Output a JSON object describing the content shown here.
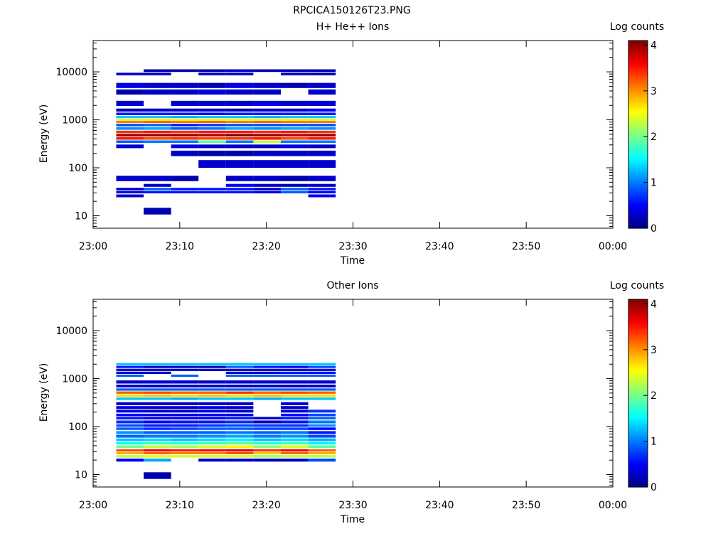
{
  "figure_title": "RPCICA150126T23.PNG",
  "colorbar_label": "Log counts",
  "colorscale": "jet",
  "chart_data": [
    {
      "type": "heatmap",
      "title": "H+ He++ Ions",
      "xlabel": "Time",
      "ylabel": "Energy (eV)",
      "y_scale": "log",
      "ylim": [
        5.5,
        45000
      ],
      "xlim": [
        "23:00",
        "00:00"
      ],
      "x_ticks": [
        "23:00",
        "23:10",
        "23:20",
        "23:30",
        "23:40",
        "23:50",
        "00:00"
      ],
      "y_ticks": [
        "10",
        "100",
        "1000",
        "10000"
      ],
      "colorbar_range": [
        0,
        4.1
      ],
      "colorbar_ticks": [
        "0",
        "1",
        "2",
        "3",
        "4"
      ],
      "time_bins": [
        [
          "23:02:40",
          "23:05:50"
        ],
        [
          "23:05:50",
          "23:09:00"
        ],
        [
          "23:09:00",
          "23:12:10"
        ],
        [
          "23:12:10",
          "23:15:20"
        ],
        [
          "23:15:20",
          "23:18:30"
        ],
        [
          "23:18:30",
          "23:21:40"
        ],
        [
          "23:21:40",
          "23:24:50"
        ],
        [
          "23:24:50",
          "23:28:00"
        ]
      ],
      "energy_bins": [
        {
          "e": 10600,
          "v": [
            0,
            0.2,
            0.2,
            0.2,
            0.3,
            0.2,
            0.2,
            0.2
          ]
        },
        {
          "e": 9000,
          "v": [
            0.3,
            0.3,
            0,
            0.3,
            0.3,
            0,
            0.3,
            0.2
          ]
        },
        {
          "e": 5200,
          "v": [
            0.4,
            0.3,
            0.3,
            0.2,
            0.4,
            0.3,
            0.2,
            0.3
          ]
        },
        {
          "e": 3800,
          "v": [
            0.2,
            0.3,
            0.3,
            0.4,
            0.3,
            0.3,
            0,
            0.3
          ]
        },
        {
          "e": 2200,
          "v": [
            0.3,
            0,
            0.3,
            0.3,
            0.3,
            0.4,
            0.3,
            0.3
          ]
        },
        {
          "e": 1600,
          "v": [
            0.2,
            0.3,
            0.3,
            0.3,
            0.2,
            0.3,
            0.3,
            0.5
          ]
        },
        {
          "e": 1330,
          "v": [
            0.6,
            0.6,
            0.6,
            0.5,
            0.6,
            0.6,
            0.6,
            0.6
          ]
        },
        {
          "e": 1140,
          "v": [
            1.3,
            1.3,
            1.2,
            1.3,
            1.3,
            1.2,
            1.3,
            1.3
          ]
        },
        {
          "e": 1000,
          "v": [
            2.4,
            2.6,
            2.5,
            2.5,
            2.5,
            2.4,
            2.6,
            2.4
          ]
        },
        {
          "e": 900,
          "v": [
            3.1,
            3.2,
            3.1,
            3.2,
            3.1,
            3.2,
            3.1,
            3.1
          ]
        },
        {
          "e": 780,
          "v": [
            0.8,
            0.9,
            0.6,
            0.7,
            0.8,
            0.8,
            0.8,
            0.8
          ]
        },
        {
          "e": 660,
          "v": [
            1.1,
            1.2,
            0.9,
            1.0,
            1.2,
            1.1,
            1.2,
            1.1
          ]
        },
        {
          "e": 560,
          "v": [
            3.4,
            3.5,
            3.4,
            3.5,
            3.5,
            3.4,
            3.5,
            3.4
          ]
        },
        {
          "e": 480,
          "v": [
            4.0,
            4.0,
            4.0,
            3.9,
            4.1,
            4.0,
            3.9,
            4.0
          ]
        },
        {
          "e": 410,
          "v": [
            3.5,
            3.3,
            3.4,
            3.3,
            3.4,
            3.5,
            3.3,
            3.5
          ]
        },
        {
          "e": 350,
          "v": [
            0.9,
            1.0,
            1.0,
            1.9,
            1.0,
            2.3,
            1.0,
            1.0
          ]
        },
        {
          "e": 280,
          "v": [
            0.3,
            0,
            0.4,
            0.3,
            0.3,
            0.3,
            0.4,
            0.3
          ]
        },
        {
          "e": 200,
          "v": [
            0,
            0,
            0.3,
            0.2,
            0.2,
            0.3,
            0.3,
            0.3
          ]
        },
        {
          "e": 120,
          "v": [
            0,
            0,
            0,
            0.3,
            0.3,
            0.3,
            0.3,
            0.3
          ]
        },
        {
          "e": 60,
          "v": [
            0.3,
            0.3,
            0.2,
            0,
            0.3,
            0.3,
            0.2,
            0.3
          ]
        },
        {
          "e": 43,
          "v": [
            0,
            0.3,
            0,
            0,
            0.5,
            0.3,
            0.2,
            0.3
          ]
        },
        {
          "e": 36,
          "v": [
            0.3,
            0.9,
            0.6,
            0.6,
            0.6,
            0.3,
            0.9,
            0.6
          ]
        },
        {
          "e": 31,
          "v": [
            0.4,
            0.6,
            0.6,
            0.6,
            0.6,
            0.4,
            0.9,
            0.5
          ]
        },
        {
          "e": 26,
          "v": [
            0.3,
            0,
            0,
            0,
            0,
            0,
            0,
            0.5
          ]
        },
        {
          "e": 12.5,
          "v": [
            0,
            0.2,
            0,
            0,
            0,
            0,
            0,
            0
          ]
        }
      ]
    },
    {
      "type": "heatmap",
      "title": "Other Ions",
      "xlabel": "Time",
      "ylabel": "Energy (eV)",
      "y_scale": "log",
      "ylim": [
        5.5,
        45000
      ],
      "xlim": [
        "23:00",
        "00:00"
      ],
      "x_ticks": [
        "23:00",
        "23:10",
        "23:20",
        "23:30",
        "23:40",
        "23:50",
        "00:00"
      ],
      "y_ticks": [
        "10",
        "100",
        "1000",
        "10000"
      ],
      "colorbar_range": [
        0,
        4.1
      ],
      "colorbar_ticks": [
        "0",
        "1",
        "2",
        "3",
        "4"
      ],
      "time_bins": [
        [
          "23:02:40",
          "23:05:50"
        ],
        [
          "23:05:50",
          "23:09:00"
        ],
        [
          "23:09:00",
          "23:12:10"
        ],
        [
          "23:12:10",
          "23:15:20"
        ],
        [
          "23:15:20",
          "23:18:30"
        ],
        [
          "23:18:30",
          "23:21:40"
        ],
        [
          "23:21:40",
          "23:24:50"
        ],
        [
          "23:24:50",
          "23:28:00"
        ]
      ],
      "energy_bins": [
        {
          "e": 2000,
          "v": [
            1.3,
            1.3,
            1.3,
            1.3,
            1.3,
            1.3,
            1.3,
            1.3
          ]
        },
        {
          "e": 1750,
          "v": [
            0.6,
            0.3,
            0.3,
            0.2,
            0.9,
            0.6,
            0.5,
            0.8
          ]
        },
        {
          "e": 1520,
          "v": [
            0.3,
            0.3,
            0.3,
            0.3,
            0.3,
            0.3,
            0.3,
            0.4
          ]
        },
        {
          "e": 1320,
          "v": [
            0.3,
            0.3,
            0,
            0,
            0.3,
            0.3,
            0.6,
            0.5
          ]
        },
        {
          "e": 1150,
          "v": [
            0.9,
            0,
            0.9,
            0,
            0.9,
            0.9,
            0.9,
            0.9
          ]
        },
        {
          "e": 850,
          "v": [
            0.3,
            0.3,
            0.3,
            0.3,
            0.3,
            0.3,
            0.3,
            0.3
          ]
        },
        {
          "e": 700,
          "v": [
            0.3,
            0.3,
            0.3,
            0.3,
            0.3,
            0.3,
            0.3,
            0.3
          ]
        },
        {
          "e": 590,
          "v": [
            0.9,
            0.9,
            0.9,
            0.9,
            0.9,
            0.9,
            0.9,
            0.9
          ]
        },
        {
          "e": 510,
          "v": [
            3.2,
            3.3,
            3.2,
            3.2,
            3.4,
            3.2,
            3.3,
            3.2
          ]
        },
        {
          "e": 440,
          "v": [
            2.7,
            2.8,
            2.7,
            2.8,
            2.7,
            2.8,
            2.7,
            2.7
          ]
        },
        {
          "e": 380,
          "v": [
            1.3,
            1.3,
            1.2,
            1.3,
            1.3,
            1.2,
            1.3,
            1.3
          ]
        },
        {
          "e": 300,
          "v": [
            0.3,
            0.3,
            0.3,
            0.3,
            0.3,
            0,
            0.3,
            0
          ]
        },
        {
          "e": 250,
          "v": [
            0.4,
            0.3,
            0.3,
            0.4,
            0.3,
            0,
            0.3,
            0
          ]
        },
        {
          "e": 210,
          "v": [
            0.4,
            0.3,
            0.3,
            0.4,
            0.3,
            0,
            0.3,
            0.7
          ]
        },
        {
          "e": 175,
          "v": [
            0.5,
            0.4,
            0.4,
            0.4,
            0.4,
            0,
            0.5,
            0.8
          ]
        },
        {
          "e": 150,
          "v": [
            0.6,
            0.5,
            0.5,
            0.5,
            0.6,
            0.3,
            0.6,
            0.9
          ]
        },
        {
          "e": 125,
          "v": [
            0.7,
            0.5,
            0.6,
            0.6,
            0.7,
            0.3,
            0.6,
            1.0
          ]
        },
        {
          "e": 105,
          "v": [
            0.8,
            0.6,
            0.6,
            0.7,
            0.8,
            0.7,
            0.7,
            1.1
          ]
        },
        {
          "e": 90,
          "v": [
            0.9,
            0.7,
            0.8,
            0.9,
            0.9,
            0.8,
            0.8,
            0.5
          ]
        },
        {
          "e": 75,
          "v": [
            1.1,
            0.9,
            0.9,
            0.9,
            1.0,
            0.9,
            1.0,
            0.6
          ]
        },
        {
          "e": 63,
          "v": [
            0.9,
            1.0,
            1.0,
            1.1,
            1.2,
            1.0,
            1.1,
            0.8
          ]
        },
        {
          "e": 53,
          "v": [
            1.3,
            1.4,
            1.3,
            1.4,
            1.5,
            1.3,
            1.4,
            1.2
          ]
        },
        {
          "e": 45,
          "v": [
            1.6,
            1.8,
            1.7,
            1.8,
            1.9,
            1.7,
            1.8,
            1.5
          ]
        },
        {
          "e": 38,
          "v": [
            2.0,
            2.3,
            2.2,
            2.4,
            2.6,
            2.1,
            2.4,
            1.9
          ]
        },
        {
          "e": 32,
          "v": [
            3.3,
            3.6,
            3.5,
            3.6,
            3.7,
            3.4,
            3.6,
            3.2
          ]
        },
        {
          "e": 28,
          "v": [
            2.9,
            3.2,
            3.1,
            3.1,
            3.3,
            2.8,
            3.2,
            2.9
          ]
        },
        {
          "e": 24,
          "v": [
            2.3,
            2.5,
            2.4,
            2.4,
            2.4,
            2.2,
            2.3,
            2.3
          ]
        },
        {
          "e": 20,
          "v": [
            0.5,
            1.2,
            0,
            0.3,
            0.3,
            0.2,
            0.3,
            0.8
          ]
        },
        {
          "e": 9.5,
          "v": [
            0,
            0.2,
            0,
            0,
            0,
            0,
            0,
            0
          ]
        }
      ]
    }
  ]
}
